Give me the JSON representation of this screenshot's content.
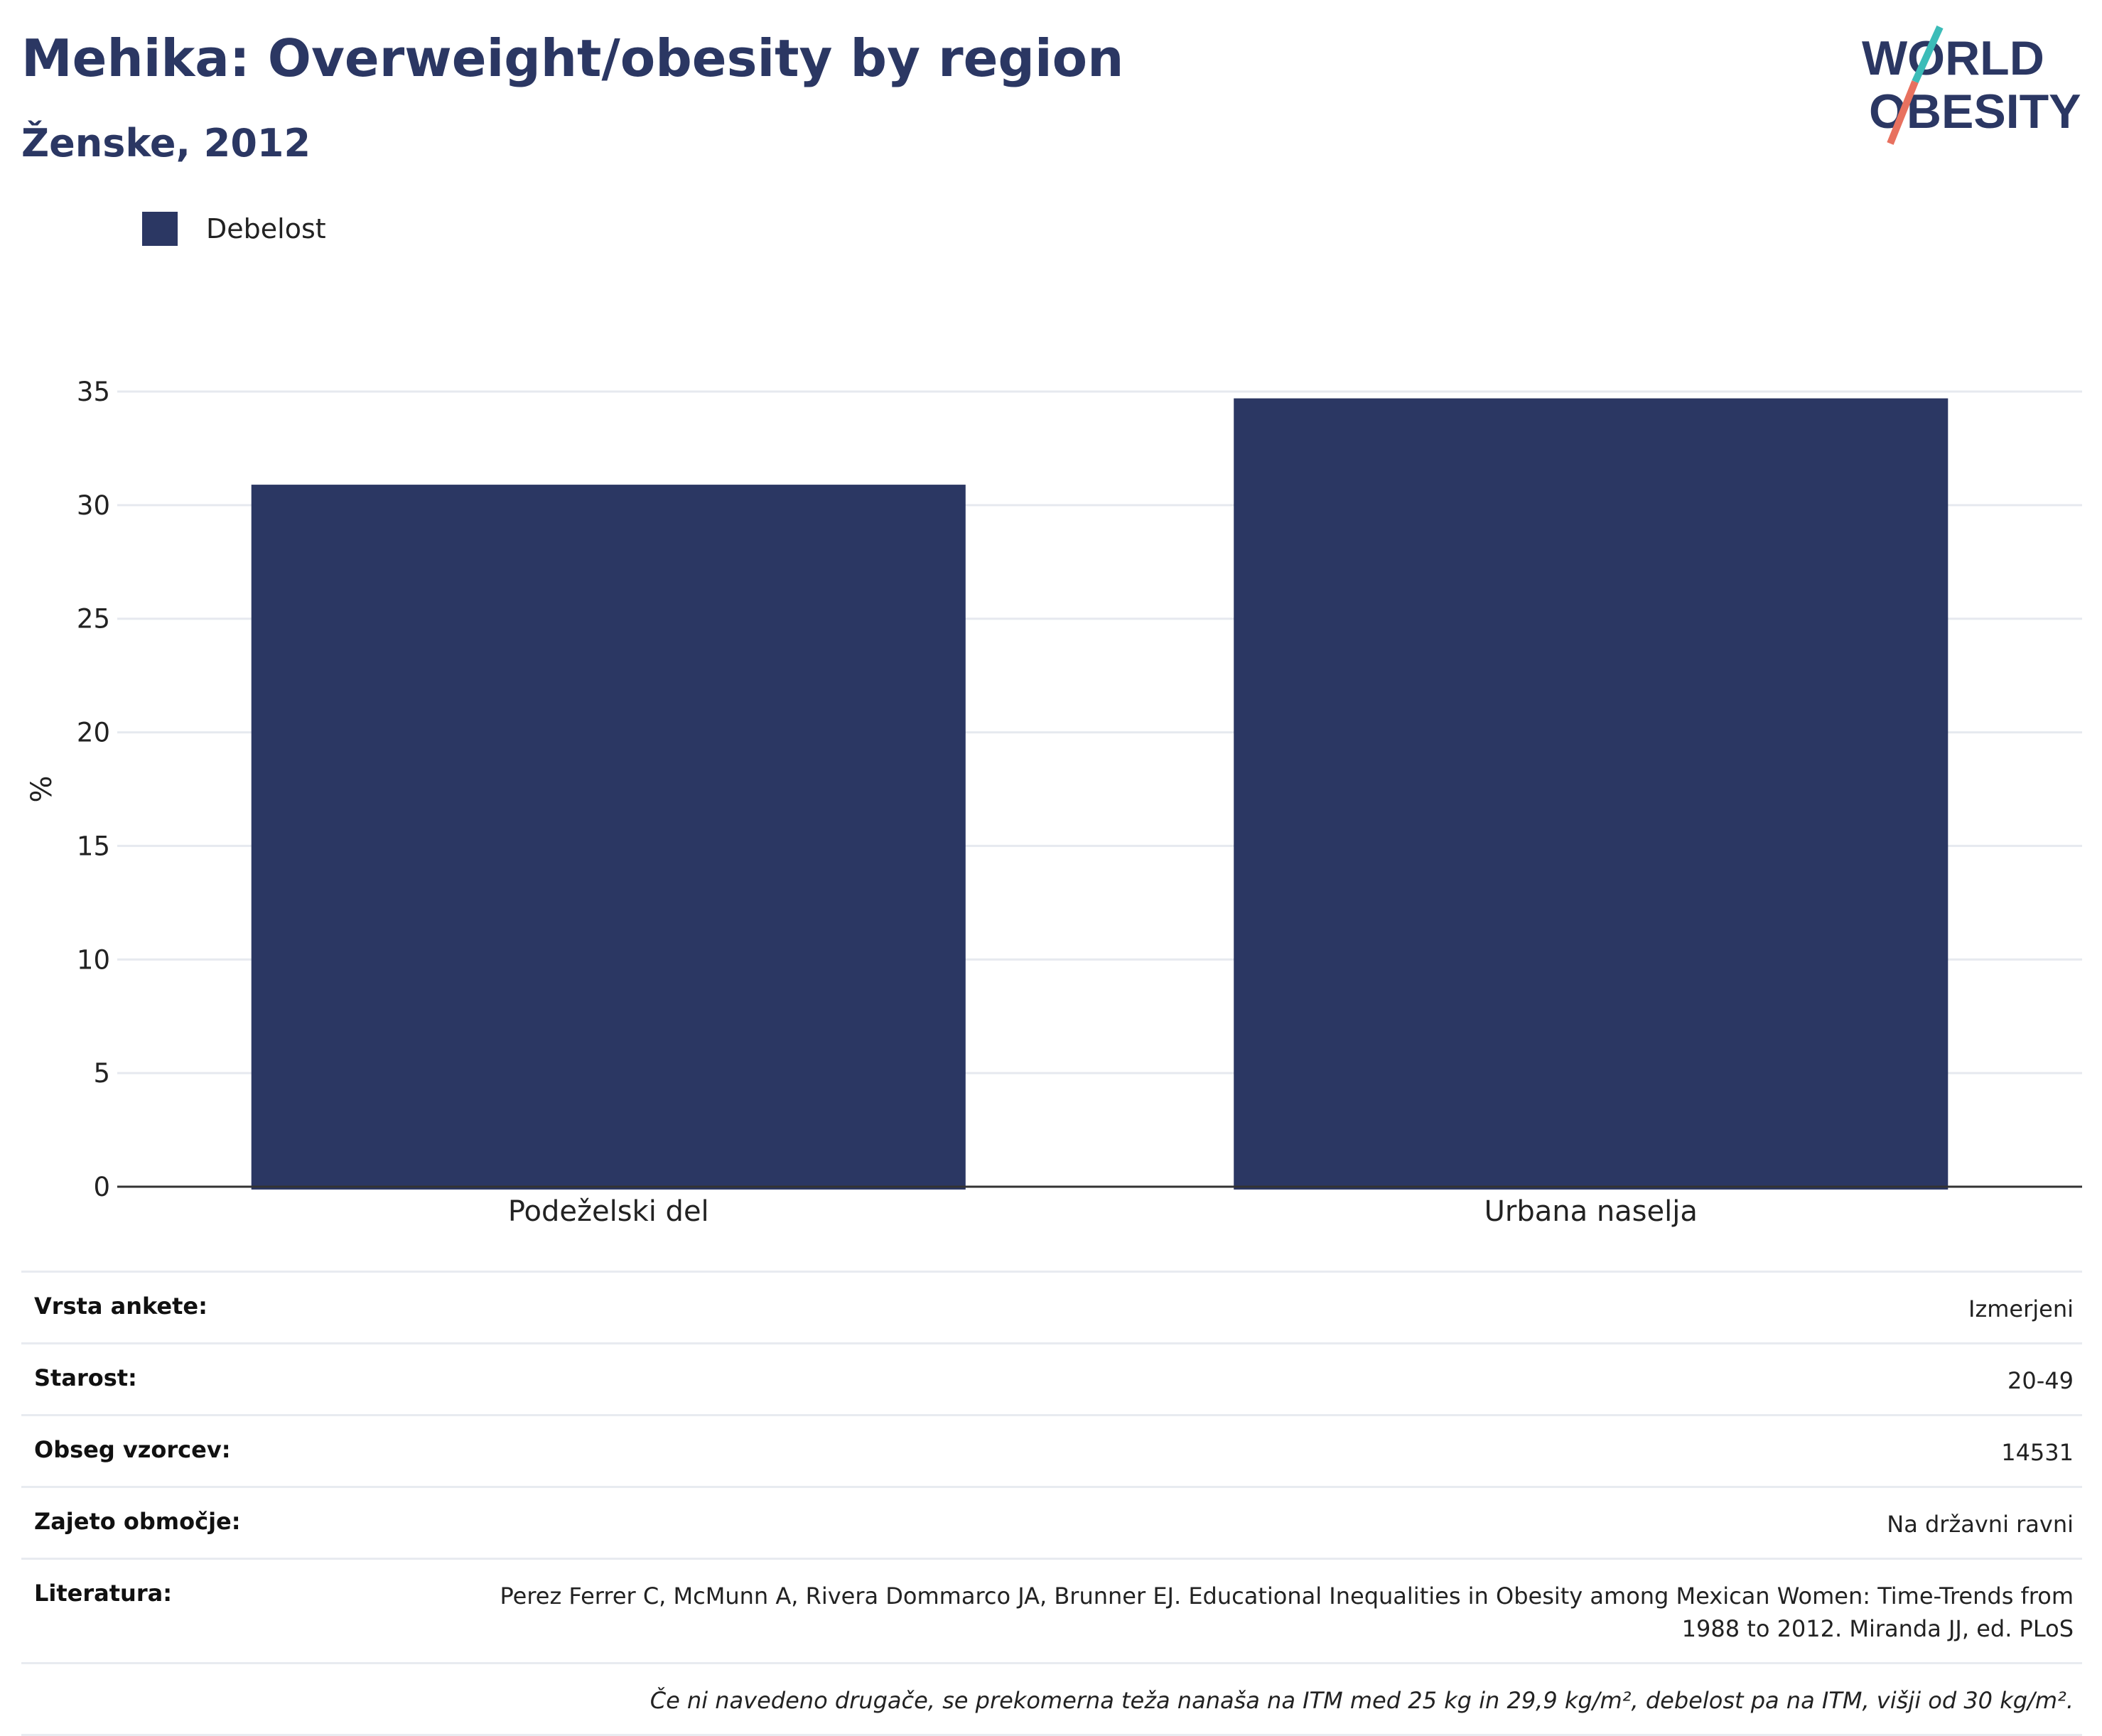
{
  "header": {
    "title": "Mehika: Overweight/obesity by region",
    "subtitle": "Ženske, 2012"
  },
  "logo": {
    "line1": "WORLD",
    "line2": "OBESITY"
  },
  "legend": {
    "label": "Debelost"
  },
  "colors": {
    "bar": "#2b3763",
    "grid": "#e6e9ef",
    "axis": "#333333",
    "logo_teal": "#3cbcb8",
    "logo_coral": "#e8715f"
  },
  "chart_data": {
    "type": "bar",
    "categories": [
      "Podeželski del",
      "Urbana naselja"
    ],
    "series": [
      {
        "name": "Debelost",
        "values": [
          30.9,
          34.7
        ]
      }
    ],
    "ylabel": "%",
    "xlabel": "",
    "ylim": [
      0,
      35
    ],
    "yticks": [
      0,
      5,
      10,
      15,
      20,
      25,
      30,
      35
    ],
    "grid": true,
    "legend_position": "top-left"
  },
  "info": {
    "rows": [
      {
        "key": "Vrsta ankete:",
        "value": "Izmerjeni"
      },
      {
        "key": "Starost:",
        "value": "20-49"
      },
      {
        "key": "Obseg vzorcev:",
        "value": "14531"
      },
      {
        "key": "Zajeto območje:",
        "value": "Na državni ravni"
      },
      {
        "key": "Literatura:",
        "value": "Perez Ferrer C, McMunn A, Rivera Dommarco JA, Brunner EJ. Educational Inequalities in Obesity among Mexican Women: Time-Trends from 1988 to 2012. Miranda JJ, ed. PLoS"
      }
    ],
    "note": "Če ni navedeno drugače, se prekomerna teža nanaša na ITM med 25 kg in 29,9 kg/m², debelost pa na ITM, višji od 30 kg/m²."
  }
}
